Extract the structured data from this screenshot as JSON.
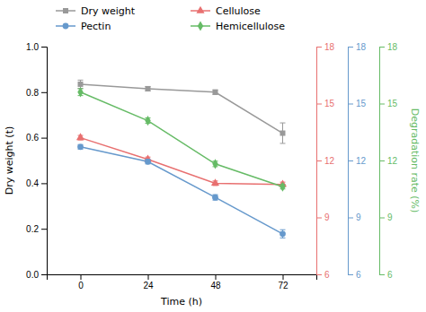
{
  "chart_data": {
    "type": "line",
    "x": [
      0,
      24,
      48,
      72
    ],
    "xlim": [
      -12,
      84
    ],
    "xticks": [
      0,
      24,
      48,
      72
    ],
    "ylim": [
      0.0,
      1.0
    ],
    "yticks": [
      {
        "value": 0.0,
        "label": "0.0"
      },
      0.2,
      0.4,
      0.6,
      0.8,
      {
        "value": 1.0,
        "label": "1.0"
      }
    ],
    "y2lim": [
      6,
      18
    ],
    "y2ticks": [
      6,
      9,
      12,
      15,
      18
    ],
    "xlabel": "Time (h)",
    "ylabel": "Dry weight (t)",
    "y2label": "Degradation rate (%)",
    "grid": false,
    "legend": "top",
    "series": [
      {
        "name": "Dry weight",
        "color": "#999999",
        "marker": "square",
        "values": [
          0.835,
          0.815,
          0.8,
          0.62
        ],
        "errors": [
          0.018,
          0.01,
          0.01,
          0.045
        ]
      },
      {
        "name": "Cellulose",
        "color": "#e87070",
        "marker": "triangle",
        "values": [
          0.6,
          0.505,
          0.4,
          0.395
        ],
        "errors": [
          0.01,
          0.01,
          0.01,
          0.01
        ]
      },
      {
        "name": "Pectin",
        "color": "#6699cc",
        "marker": "circle",
        "values": [
          0.56,
          0.495,
          0.338,
          0.178
        ],
        "errors": [
          0.01,
          0.01,
          0.012,
          0.018
        ]
      },
      {
        "name": "Hemicellulose",
        "color": "#66bb66",
        "marker": "diamond",
        "values": [
          0.8,
          0.675,
          0.485,
          0.385
        ],
        "errors": [
          0.015,
          0.012,
          0.012,
          0.01
        ]
      }
    ]
  }
}
